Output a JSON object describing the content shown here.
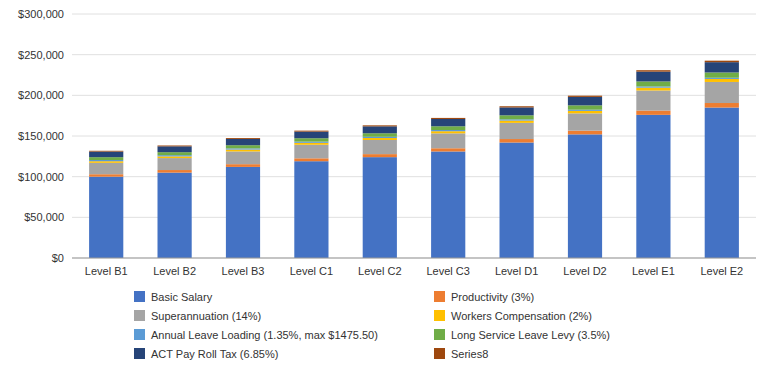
{
  "chart_data": {
    "type": "bar",
    "stacked": true,
    "grid": true,
    "legend": "bottom",
    "categories": [
      "Level B1",
      "Level B2",
      "Level B3",
      "Level C1",
      "Level C2",
      "Level C3",
      "Level D1",
      "Level D2",
      "Level E1",
      "Level E2"
    ],
    "series": [
      {
        "name": "Basic Salary",
        "color": "#4472C4",
        "values": [
          100000,
          105000,
          112000,
          119000,
          124000,
          131000,
          142000,
          152000,
          176000,
          185000
        ]
      },
      {
        "name": "Productivity (3%)",
        "color": "#ED7D31",
        "values": [
          3000,
          3150,
          3360,
          3570,
          3720,
          3930,
          4260,
          4560,
          5280,
          5550
        ]
      },
      {
        "name": "Superannuation (14%)",
        "color": "#A5A5A5",
        "values": [
          14000,
          14700,
          15680,
          16660,
          17360,
          18340,
          19880,
          21280,
          24640,
          25900
        ]
      },
      {
        "name": "Workers Compensation (2%)",
        "color": "#FFC000",
        "values": [
          2000,
          2100,
          2240,
          2380,
          2480,
          2620,
          2840,
          3040,
          3520,
          3700
        ]
      },
      {
        "name": "Annual Leave Loading (1.35%, max $1475.50)",
        "color": "#5B9BD5",
        "values": [
          1476,
          1476,
          1476,
          1476,
          1476,
          1476,
          1476,
          1476,
          1476,
          1476
        ]
      },
      {
        "name": "Long Service Leave Levy (3.5%)",
        "color": "#70AD47",
        "values": [
          3500,
          3675,
          3920,
          4165,
          4340,
          4585,
          4970,
          5320,
          6160,
          6475
        ]
      },
      {
        "name": "ACT Pay Roll Tax (6.85%)",
        "color": "#264478",
        "values": [
          6850,
          7193,
          7672,
          8152,
          8494,
          8974,
          9727,
          10408,
          12056,
          12673
        ]
      },
      {
        "name": "Series8",
        "color": "#9E480E",
        "values": [
          1000,
          1050,
          1120,
          1190,
          1240,
          1310,
          1420,
          1520,
          1760,
          1850
        ]
      }
    ],
    "ylim": [
      0,
      300000
    ],
    "yticks": [
      {
        "value": 0,
        "label": "$0"
      },
      {
        "value": 50000,
        "label": "$50,000"
      },
      {
        "value": 100000,
        "label": "$100,000"
      },
      {
        "value": 150000,
        "label": "$150,000"
      },
      {
        "value": 200000,
        "label": "$200,000"
      },
      {
        "value": 250000,
        "label": "$250,000"
      },
      {
        "value": 300000,
        "label": "$300,000"
      }
    ]
  }
}
